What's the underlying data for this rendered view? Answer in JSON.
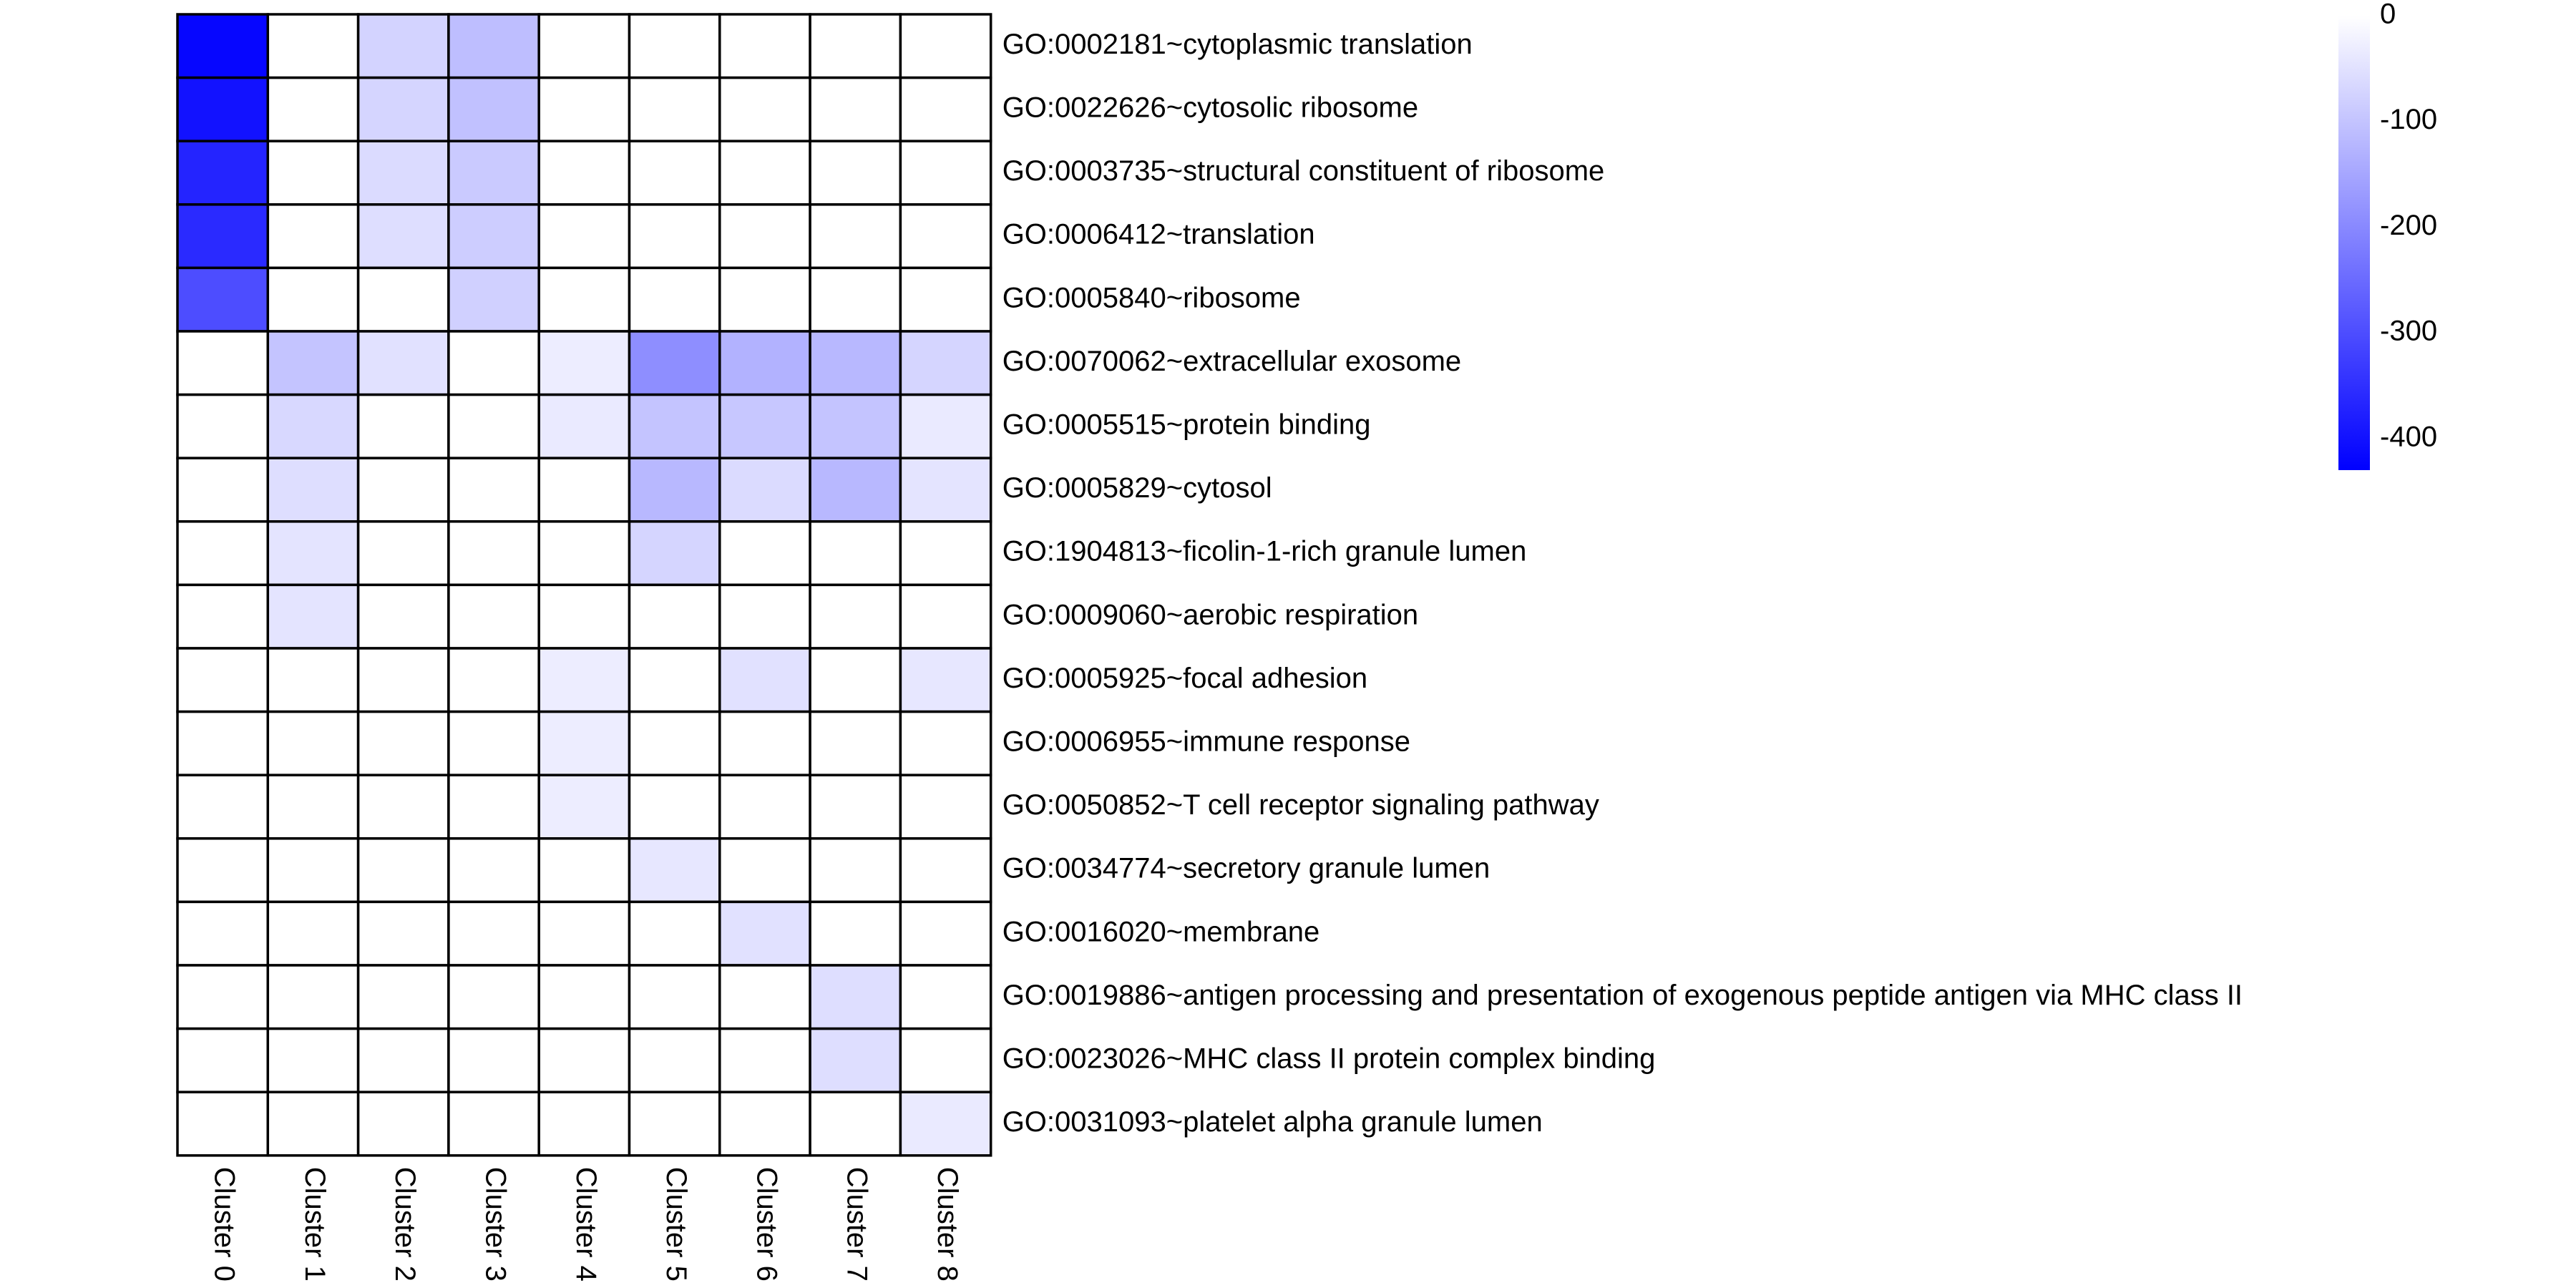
{
  "chart_data": {
    "type": "heatmap",
    "title": "",
    "xlabel": "",
    "ylabel": "",
    "columns": [
      "Cluster 0",
      "Cluster 1",
      "Cluster 2",
      "Cluster 3",
      "Cluster 4",
      "Cluster 5",
      "Cluster 6",
      "Cluster 7",
      "Cluster 8"
    ],
    "rows": [
      "GO:0002181~cytoplasmic translation",
      "GO:0022626~cytosolic ribosome",
      "GO:0003735~structural constituent of ribosome",
      "GO:0006412~translation",
      "GO:0005840~ribosome",
      "GO:0070062~extracellular exosome",
      "GO:0005515~protein binding",
      "GO:0005829~cytosol",
      "GO:1904813~ficolin-1-rich granule lumen",
      "GO:0009060~aerobic respiration",
      "GO:0005925~focal adhesion",
      "GO:0006955~immune response",
      "GO:0050852~T cell receptor signaling pathway",
      "GO:0034774~secretory granule lumen",
      "GO:0016020~membrane",
      "GO:0019886~antigen processing and presentation of exogenous peptide antigen via MHC class II",
      "GO:0023026~MHC class II protein complex binding",
      "GO:0031093~platelet alpha granule lumen"
    ],
    "values": [
      [
        -420,
        0,
        -75,
        -110,
        0,
        0,
        0,
        0,
        0
      ],
      [
        -400,
        0,
        -70,
        -105,
        0,
        0,
        0,
        0,
        0
      ],
      [
        -370,
        0,
        -60,
        -90,
        0,
        0,
        0,
        0,
        0
      ],
      [
        -360,
        0,
        -55,
        -85,
        0,
        0,
        0,
        0,
        0
      ],
      [
        -300,
        0,
        0,
        -80,
        0,
        0,
        0,
        0,
        0
      ],
      [
        0,
        -100,
        -50,
        0,
        -30,
        -190,
        -130,
        -120,
        -70
      ],
      [
        0,
        -65,
        0,
        0,
        -35,
        -100,
        -95,
        -100,
        -35
      ],
      [
        0,
        -55,
        0,
        0,
        0,
        -120,
        -60,
        -120,
        -45
      ],
      [
        0,
        -45,
        0,
        0,
        0,
        -70,
        0,
        0,
        0
      ],
      [
        0,
        -45,
        0,
        0,
        0,
        0,
        0,
        0,
        0
      ],
      [
        0,
        0,
        0,
        0,
        -30,
        0,
        -50,
        0,
        -40
      ],
      [
        0,
        0,
        0,
        0,
        -30,
        0,
        0,
        0,
        0
      ],
      [
        0,
        0,
        0,
        0,
        -30,
        0,
        0,
        0,
        0
      ],
      [
        0,
        0,
        0,
        0,
        0,
        -40,
        0,
        0,
        0
      ],
      [
        0,
        0,
        0,
        0,
        0,
        0,
        -50,
        0,
        0
      ],
      [
        0,
        0,
        0,
        0,
        0,
        0,
        0,
        -55,
        0
      ],
      [
        0,
        0,
        0,
        0,
        0,
        0,
        0,
        -55,
        0
      ],
      [
        0,
        0,
        0,
        0,
        0,
        0,
        0,
        0,
        -35
      ]
    ],
    "color_scale": {
      "min": -430,
      "max": 0,
      "low_color": "#0000ff",
      "high_color": "#ffffff",
      "ticks": [
        0,
        -100,
        -200,
        -300,
        -400
      ],
      "tick_labels": [
        "0",
        "-100",
        "-200",
        "-300",
        "-400"
      ],
      "position": "top-right"
    },
    "grid": true,
    "cell_border_color": "#000000"
  }
}
